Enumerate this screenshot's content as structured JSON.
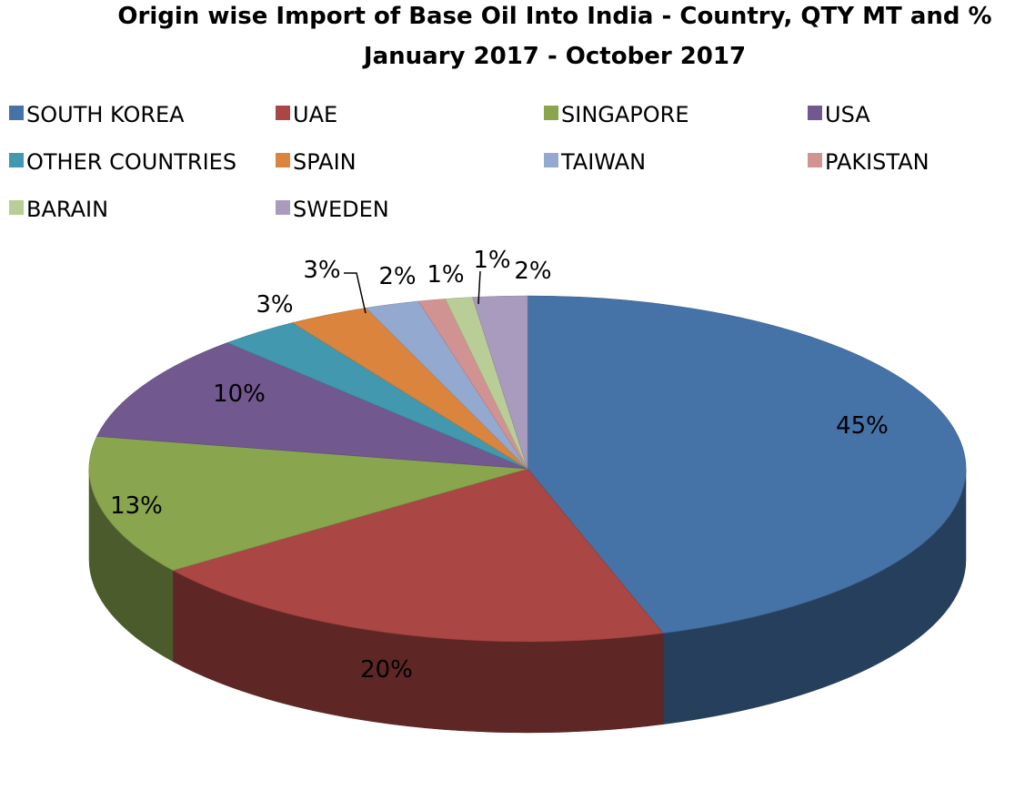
{
  "chart_data": {
    "type": "pie",
    "title": "Origin wise Import of Base Oil Into India - Country, QTY  MT and  %",
    "subtitle": "January 2017 - October 2017",
    "legend_position": "top",
    "slices": [
      {
        "name": "SOUTH KOREA",
        "value": 45,
        "label": "45%",
        "color": "#4572A7"
      },
      {
        "name": "UAE",
        "value": 20,
        "label": "20%",
        "color": "#AA4643"
      },
      {
        "name": "SINGAPORE",
        "value": 13,
        "label": "13%",
        "color": "#89A54E"
      },
      {
        "name": "USA",
        "value": 10,
        "label": "10%",
        "color": "#71588F"
      },
      {
        "name": "OTHER COUNTRIES",
        "value": 3,
        "label": "3%",
        "color": "#4198AF"
      },
      {
        "name": "SPAIN",
        "value": 3,
        "label": "3%",
        "color": "#DB843D"
      },
      {
        "name": "TAIWAN",
        "value": 2,
        "label": "2%",
        "color": "#93A9CF"
      },
      {
        "name": "PAKISTAN",
        "value": 1,
        "label": "1%",
        "color": "#D19392"
      },
      {
        "name": "BARAIN",
        "value": 1,
        "label": "1%",
        "color": "#B9CD96"
      },
      {
        "name": "SWEDEN",
        "value": 2,
        "label": "2%",
        "color": "#A99BBD"
      }
    ]
  }
}
